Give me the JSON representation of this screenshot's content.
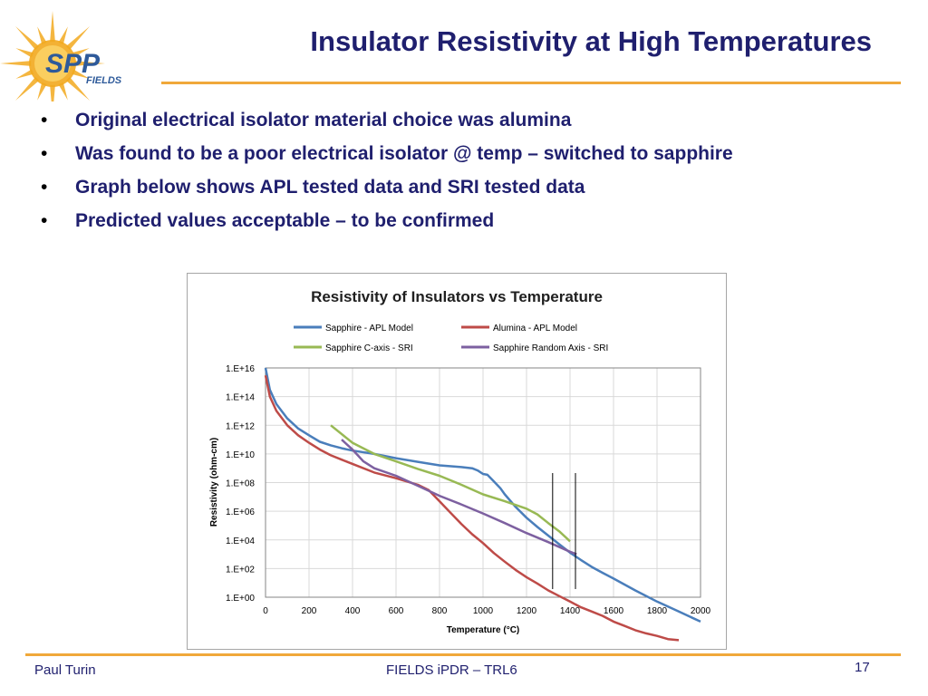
{
  "slide": {
    "title": "Insulator Resistivity at High Temperatures",
    "bullets": [
      "Original electrical isolator material choice was alumina",
      "Was found to be a poor electrical isolator @ temp – switched to sapphire",
      "Graph below shows APL tested data and SRI tested data",
      "Predicted values acceptable – to be confirmed"
    ],
    "bullet_symbol": "•",
    "footer_left": "Paul Turin",
    "footer_center": "FIELDS iPDR – TRL6",
    "page_number": "17",
    "logo_text_main": "SPP",
    "logo_text_sub": "FIELDS",
    "colors": {
      "title": "#1f1f6e",
      "accent_rule": "#f0a83a",
      "logo_sun": "#f2a91e",
      "logo_text": "#2e5a9a"
    }
  },
  "chart_data": {
    "type": "line",
    "title": "Resistivity of Insulators vs Temperature",
    "xlabel": "Temperature (°C)",
    "ylabel": "Resistivity (ohm-cm)",
    "x_ticks": [
      0,
      200,
      400,
      600,
      800,
      1000,
      1200,
      1400,
      1600,
      1800,
      2000
    ],
    "y_tick_labels": [
      "1.E+00",
      "1.E+02",
      "1.E+04",
      "1.E+06",
      "1.E+08",
      "1.E+10",
      "1.E+12",
      "1.E+14",
      "1.E+16"
    ],
    "y_scale": "log",
    "xlim": [
      0,
      2000
    ],
    "ylim_exponent": [
      0,
      16
    ],
    "grid": true,
    "legend_position": "top",
    "series": [
      {
        "name": "Sapphire - APL Model",
        "color": "#4a7ebb",
        "points": [
          [
            0,
            1e+16
          ],
          [
            20,
            300000000000000.0
          ],
          [
            50,
            30000000000000.0
          ],
          [
            100,
            3000000000000.0
          ],
          [
            150,
            600000000000.0
          ],
          [
            200,
            200000000000.0
          ],
          [
            250,
            70000000000.0
          ],
          [
            300,
            40000000000.0
          ],
          [
            350,
            25000000000.0
          ],
          [
            400,
            17000000000.0
          ],
          [
            500,
            10000000000.0
          ],
          [
            600,
            5000000000.0
          ],
          [
            700,
            2800000000.0
          ],
          [
            800,
            1600000000.0
          ],
          [
            900,
            1200000000.0
          ],
          [
            950,
            1000000000.0
          ],
          [
            975,
            700000000.0
          ],
          [
            1000,
            400000000.0
          ],
          [
            1020,
            350000000.0
          ],
          [
            1050,
            120000000.0
          ],
          [
            1080,
            40000000.0
          ],
          [
            1100,
            15000000.0
          ],
          [
            1150,
            2000000.0
          ],
          [
            1200,
            350000.0
          ],
          [
            1250,
            80000.0
          ],
          [
            1300,
            20000.0
          ],
          [
            1350,
            5000.0
          ],
          [
            1400,
            1300.0
          ],
          [
            1450,
            400
          ],
          [
            1500,
            130
          ],
          [
            1550,
            50
          ],
          [
            1600,
            20
          ],
          [
            1700,
            3
          ],
          [
            1800,
            0.5
          ],
          [
            1900,
            0.1
          ],
          [
            2000,
            0.02
          ]
        ]
      },
      {
        "name": "Alumina - APL Model",
        "color": "#be4b48",
        "points": [
          [
            0,
            3000000000000000.0
          ],
          [
            20,
            100000000000000.0
          ],
          [
            50,
            10000000000000.0
          ],
          [
            100,
            1000000000000.0
          ],
          [
            150,
            200000000000.0
          ],
          [
            200,
            60000000000.0
          ],
          [
            250,
            20000000000.0
          ],
          [
            300,
            8000000000.0
          ],
          [
            350,
            4000000000.0
          ],
          [
            400,
            2000000000.0
          ],
          [
            500,
            500000000.0
          ],
          [
            600,
            200000000.0
          ],
          [
            700,
            70000000.0
          ],
          [
            750,
            30000000.0
          ],
          [
            800,
            5000000.0
          ],
          [
            850,
            800000.0
          ],
          [
            900,
            130000.0
          ],
          [
            950,
            25000.0
          ],
          [
            1000,
            6000.0
          ],
          [
            1050,
            1200.0
          ],
          [
            1100,
            300
          ],
          [
            1150,
            80
          ],
          [
            1200,
            25
          ],
          [
            1250,
            9
          ],
          [
            1300,
            3
          ],
          [
            1350,
            1.2
          ],
          [
            1400,
            0.5
          ],
          [
            1450,
            0.2
          ],
          [
            1500,
            0.1
          ],
          [
            1550,
            0.05
          ],
          [
            1600,
            0.02
          ],
          [
            1650,
            0.01
          ],
          [
            1700,
            0.005
          ],
          [
            1750,
            0.003
          ],
          [
            1800,
            0.002
          ],
          [
            1850,
            0.0012
          ],
          [
            1900,
            0.001
          ]
        ]
      },
      {
        "name": "Sapphire C-axis - SRI",
        "color": "#98b954",
        "points": [
          [
            300,
            1000000000000.0
          ],
          [
            400,
            60000000000.0
          ],
          [
            500,
            10000000000.0
          ],
          [
            600,
            3000000000.0
          ],
          [
            700,
            900000000.0
          ],
          [
            800,
            300000000.0
          ],
          [
            900,
            70000000.0
          ],
          [
            1000,
            15000000.0
          ],
          [
            1100,
            5000000.0
          ],
          [
            1200,
            1500000.0
          ],
          [
            1250,
            600000.0
          ],
          [
            1300,
            150000.0
          ],
          [
            1350,
            40000.0
          ],
          [
            1400,
            8000.0
          ]
        ]
      },
      {
        "name": "Sapphire Random Axis - SRI",
        "color": "#7d60a0",
        "points": [
          [
            350,
            100000000000.0
          ],
          [
            400,
            20000000000.0
          ],
          [
            450,
            3000000000.0
          ],
          [
            500,
            1000000000.0
          ],
          [
            600,
            300000000.0
          ],
          [
            700,
            60000000.0
          ],
          [
            800,
            12000000.0
          ],
          [
            900,
            3000000.0
          ],
          [
            1000,
            700000.0
          ],
          [
            1100,
            150000.0
          ],
          [
            1200,
            30000.0
          ],
          [
            1300,
            7000.0
          ],
          [
            1400,
            1500.0
          ],
          [
            1430,
            1000.0
          ]
        ]
      }
    ],
    "vertical_markers_x": [
      1320,
      1425
    ]
  }
}
